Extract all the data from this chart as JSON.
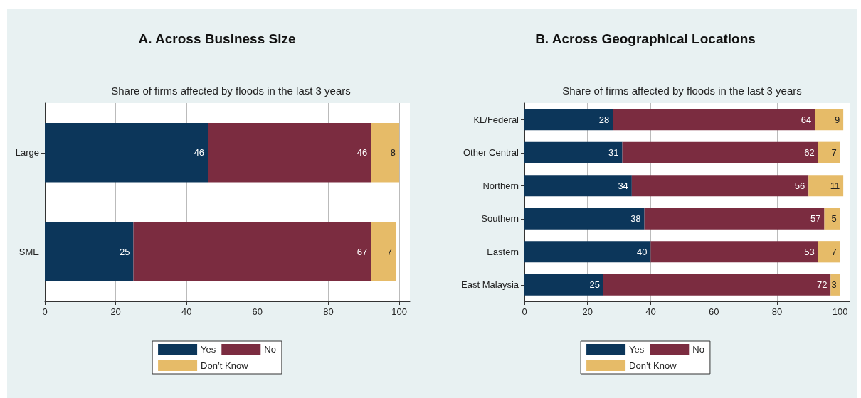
{
  "chart_data": [
    {
      "type": "bar",
      "orientation": "horizontal",
      "stacked": true,
      "title": "A. Across Business Size",
      "subtitle": "Share of firms affected by floods in the last 3 years",
      "categories": [
        "Large",
        "SME"
      ],
      "series": [
        {
          "name": "Yes",
          "color": "#0c365a",
          "values": [
            46,
            25
          ]
        },
        {
          "name": "No",
          "color": "#7b2c40",
          "values": [
            46,
            67
          ]
        },
        {
          "name": "Don’t Know",
          "color": "#e6bb68",
          "values": [
            8,
            7
          ]
        }
      ],
      "xlim": [
        0,
        103
      ],
      "xticks": [
        0,
        20,
        40,
        60,
        80,
        100
      ],
      "grid": "x",
      "legend": "bottom",
      "data_labels": true
    },
    {
      "type": "bar",
      "orientation": "horizontal",
      "stacked": true,
      "title": "B. Across Geographical Locations",
      "subtitle": "Share of firms affected by floods in the last 3 years",
      "categories": [
        "KL/Federal",
        "Other Central",
        "Northern",
        "Southern",
        "Eastern",
        "East Malaysia"
      ],
      "series": [
        {
          "name": "Yes",
          "color": "#0c365a",
          "values": [
            28,
            31,
            34,
            38,
            40,
            25
          ]
        },
        {
          "name": "No",
          "color": "#7b2c40",
          "values": [
            64,
            62,
            56,
            57,
            53,
            72
          ]
        },
        {
          "name": "Don’t Know",
          "color": "#e6bb68",
          "values": [
            9,
            7,
            11,
            5,
            7,
            3
          ]
        }
      ],
      "xlim": [
        0,
        103
      ],
      "xticks": [
        0,
        20,
        40,
        60,
        80,
        100
      ],
      "grid": "x",
      "legend": "bottom",
      "data_labels": true
    }
  ]
}
